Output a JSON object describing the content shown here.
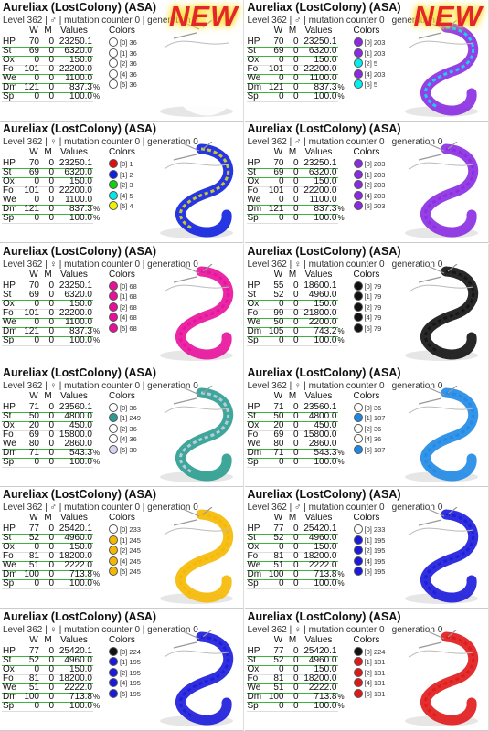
{
  "table_headers": [
    "W",
    "M",
    "Values"
  ],
  "colors_header": "Colors",
  "badges": [
    "NEW",
    "NEW"
  ],
  "cards": [
    {
      "title": "Aureliax (LostColony) (ASA)",
      "level": "Level 362 | ♂ | mutation counter 0 | generation 0",
      "stats": [
        [
          "HP",
          "70",
          "0",
          "23250.1",
          ""
        ],
        [
          "St",
          "69",
          "0",
          "6320.0",
          ""
        ],
        [
          "Ox",
          "0",
          "0",
          "150.0",
          ""
        ],
        [
          "Fo",
          "101",
          "0",
          "22200.0",
          ""
        ],
        [
          "We",
          "0",
          "0",
          "1100.0",
          ""
        ],
        [
          "Dm",
          "121",
          "0",
          "837.3",
          "%"
        ],
        [
          "Sp",
          "0",
          "0",
          "100.0",
          "%"
        ]
      ],
      "colors": [
        {
          "label": "[0] 36",
          "swatch": "#ffffff"
        },
        {
          "label": "[1] 36",
          "swatch": "#ffffff"
        },
        {
          "label": "[2] 36",
          "swatch": "#ffffff"
        },
        {
          "label": "[4] 36",
          "swatch": "#ffffff"
        },
        {
          "label": "[5] 36",
          "swatch": "#ffffff"
        }
      ]
    },
    {
      "title": "Aureliax (LostColony) (ASA)",
      "level": "Level 362 | ♂ | mutation counter 0 | generation 0",
      "stats": [
        [
          "HP",
          "70",
          "0",
          "23250.1",
          ""
        ],
        [
          "St",
          "69",
          "0",
          "6320.0",
          ""
        ],
        [
          "Ox",
          "0",
          "0",
          "150.0",
          ""
        ],
        [
          "Fo",
          "101",
          "0",
          "22200.0",
          ""
        ],
        [
          "We",
          "0",
          "0",
          "1100.0",
          ""
        ],
        [
          "Dm",
          "121",
          "0",
          "837.3",
          "%"
        ],
        [
          "Sp",
          "0",
          "0",
          "100.0",
          "%"
        ]
      ],
      "colors": [
        {
          "label": "[0] 203",
          "swatch": "#8a2be2"
        },
        {
          "label": "[1] 203",
          "swatch": "#8a2be2"
        },
        {
          "label": "[2] 5",
          "swatch": "#00f0f0"
        },
        {
          "label": "[4] 203",
          "swatch": "#8a2be2"
        },
        {
          "label": "[5] 5",
          "swatch": "#00f0f0"
        }
      ]
    },
    {
      "title": "Aureliax (LostColony) (ASA)",
      "level": "Level 362 | ♀ | mutation counter 0 | generation 0",
      "stats": [
        [
          "HP",
          "70",
          "0",
          "23250.1",
          ""
        ],
        [
          "St",
          "69",
          "0",
          "6320.0",
          ""
        ],
        [
          "Ox",
          "0",
          "0",
          "150.0",
          ""
        ],
        [
          "Fo",
          "101",
          "0",
          "22200.0",
          ""
        ],
        [
          "We",
          "0",
          "0",
          "1100.0",
          ""
        ],
        [
          "Dm",
          "121",
          "0",
          "837.3",
          "%"
        ],
        [
          "Sp",
          "0",
          "0",
          "100.0",
          "%"
        ]
      ],
      "colors": [
        {
          "label": "[0] 1",
          "swatch": "#e01010"
        },
        {
          "label": "[1] 2",
          "swatch": "#1020e0"
        },
        {
          "label": "[2] 3",
          "swatch": "#10d010"
        },
        {
          "label": "[4] 5",
          "swatch": "#00e8e8"
        },
        {
          "label": "[5] 4",
          "swatch": "#f0f000"
        }
      ]
    },
    {
      "title": "Aureliax (LostColony) (ASA)",
      "level": "Level 362 | ♂ | mutation counter 0 | generation 0",
      "stats": [
        [
          "HP",
          "70",
          "0",
          "23250.1",
          ""
        ],
        [
          "St",
          "69",
          "0",
          "6320.0",
          ""
        ],
        [
          "Ox",
          "0",
          "0",
          "150.0",
          ""
        ],
        [
          "Fo",
          "101",
          "0",
          "22200.0",
          ""
        ],
        [
          "We",
          "0",
          "0",
          "1100.0",
          ""
        ],
        [
          "Dm",
          "121",
          "0",
          "837.3",
          "%"
        ],
        [
          "Sp",
          "0",
          "0",
          "100.0",
          "%"
        ]
      ],
      "colors": [
        {
          "label": "[0] 203",
          "swatch": "#8a2be2"
        },
        {
          "label": "[1] 203",
          "swatch": "#8a2be2"
        },
        {
          "label": "[2] 203",
          "swatch": "#8a2be2"
        },
        {
          "label": "[4] 203",
          "swatch": "#8a2be2"
        },
        {
          "label": "[5] 203",
          "swatch": "#8a2be2"
        }
      ]
    },
    {
      "title": "Aureliax (LostColony) (ASA)",
      "level": "Level 362 | ♀ | mutation counter 0 | generation 0",
      "stats": [
        [
          "HP",
          "70",
          "0",
          "23250.1",
          ""
        ],
        [
          "St",
          "69",
          "0",
          "6320.0",
          ""
        ],
        [
          "Ox",
          "0",
          "0",
          "150.0",
          ""
        ],
        [
          "Fo",
          "101",
          "0",
          "22200.0",
          ""
        ],
        [
          "We",
          "0",
          "0",
          "1100.0",
          ""
        ],
        [
          "Dm",
          "121",
          "0",
          "837.3",
          "%"
        ],
        [
          "Sp",
          "0",
          "0",
          "100.0",
          "%"
        ]
      ],
      "colors": [
        {
          "label": "[0] 68",
          "swatch": "#e8109a"
        },
        {
          "label": "[1] 68",
          "swatch": "#e8109a"
        },
        {
          "label": "[2] 68",
          "swatch": "#e8109a"
        },
        {
          "label": "[4] 68",
          "swatch": "#e8109a"
        },
        {
          "label": "[5] 68",
          "swatch": "#e8109a"
        }
      ]
    },
    {
      "title": "Aureliax (LostColony) (ASA)",
      "level": "Level 362 | ♀ | mutation counter 0 | generation 0",
      "stats": [
        [
          "HP",
          "55",
          "0",
          "18600.1",
          ""
        ],
        [
          "St",
          "52",
          "0",
          "4960.0",
          ""
        ],
        [
          "Ox",
          "0",
          "0",
          "150.0",
          ""
        ],
        [
          "Fo",
          "99",
          "0",
          "21800.0",
          ""
        ],
        [
          "We",
          "50",
          "0",
          "2200.0",
          ""
        ],
        [
          "Dm",
          "105",
          "0",
          "743.2",
          "%"
        ],
        [
          "Sp",
          "0",
          "0",
          "100.0",
          "%"
        ]
      ],
      "colors": [
        {
          "label": "[0] 79",
          "swatch": "#111111"
        },
        {
          "label": "[1] 79",
          "swatch": "#111111"
        },
        {
          "label": "[2] 79",
          "swatch": "#111111"
        },
        {
          "label": "[4] 79",
          "swatch": "#111111"
        },
        {
          "label": "[5] 79",
          "swatch": "#111111"
        }
      ]
    },
    {
      "title": "Aureliax (LostColony) (ASA)",
      "level": "Level 362 | ♀ | mutation counter 0 | generation 0",
      "stats": [
        [
          "HP",
          "71",
          "0",
          "23560.1",
          ""
        ],
        [
          "St",
          "50",
          "0",
          "4800.0",
          ""
        ],
        [
          "Ox",
          "20",
          "0",
          "450.0",
          ""
        ],
        [
          "Fo",
          "69",
          "0",
          "15800.0",
          ""
        ],
        [
          "We",
          "80",
          "0",
          "2860.0",
          ""
        ],
        [
          "Dm",
          "71",
          "0",
          "543.3",
          "%"
        ],
        [
          "Sp",
          "0",
          "0",
          "100.0",
          "%"
        ]
      ],
      "colors": [
        {
          "label": "[0] 36",
          "swatch": "#ffffff"
        },
        {
          "label": "[1] 249",
          "swatch": "#2a9d8f"
        },
        {
          "label": "[2] 36",
          "swatch": "#ffffff"
        },
        {
          "label": "[4] 36",
          "swatch": "#ffffff"
        },
        {
          "label": "[5] 30",
          "swatch": "#d8d4f0"
        }
      ]
    },
    {
      "title": "Aureliax (LostColony) (ASA)",
      "level": "Level 362 | ♀ | mutation counter 0 | generation 0",
      "stats": [
        [
          "HP",
          "71",
          "0",
          "23560.1",
          ""
        ],
        [
          "St",
          "50",
          "0",
          "4800.0",
          ""
        ],
        [
          "Ox",
          "20",
          "0",
          "450.0",
          ""
        ],
        [
          "Fo",
          "69",
          "0",
          "15800.0",
          ""
        ],
        [
          "We",
          "80",
          "0",
          "2860.0",
          ""
        ],
        [
          "Dm",
          "71",
          "0",
          "543.3",
          "%"
        ],
        [
          "Sp",
          "0",
          "0",
          "100.0",
          "%"
        ]
      ],
      "colors": [
        {
          "label": "[0] 36",
          "swatch": "#ffffff"
        },
        {
          "label": "[1] 187",
          "swatch": "#1e88e5"
        },
        {
          "label": "[2] 36",
          "swatch": "#ffffff"
        },
        {
          "label": "[4] 36",
          "swatch": "#ffffff"
        },
        {
          "label": "[5] 187",
          "swatch": "#1e88e5"
        }
      ]
    },
    {
      "title": "Aureliax (LostColony) (ASA)",
      "level": "Level 362 | ♂ | mutation counter 0 | generation 0",
      "stats": [
        [
          "HP",
          "77",
          "0",
          "25420.1",
          ""
        ],
        [
          "St",
          "52",
          "0",
          "4960.0",
          ""
        ],
        [
          "Ox",
          "0",
          "0",
          "150.0",
          ""
        ],
        [
          "Fo",
          "81",
          "0",
          "18200.0",
          ""
        ],
        [
          "We",
          "51",
          "0",
          "2222.0",
          ""
        ],
        [
          "Dm",
          "100",
          "0",
          "713.8",
          "%"
        ],
        [
          "Sp",
          "0",
          "0",
          "100.0",
          "%"
        ]
      ],
      "colors": [
        {
          "label": "[0] 233",
          "swatch": "#ffffff"
        },
        {
          "label": "[1] 245",
          "swatch": "#f5b800"
        },
        {
          "label": "[2] 245",
          "swatch": "#f5b800"
        },
        {
          "label": "[4] 245",
          "swatch": "#f5b800"
        },
        {
          "label": "[5] 245",
          "swatch": "#f5b800"
        }
      ]
    },
    {
      "title": "Aureliax (LostColony) (ASA)",
      "level": "Level 362 | ♂ | mutation counter 0 | generation 0",
      "stats": [
        [
          "HP",
          "77",
          "0",
          "25420.1",
          ""
        ],
        [
          "St",
          "52",
          "0",
          "4960.0",
          ""
        ],
        [
          "Ox",
          "0",
          "0",
          "150.0",
          ""
        ],
        [
          "Fo",
          "81",
          "0",
          "18200.0",
          ""
        ],
        [
          "We",
          "51",
          "0",
          "2222.0",
          ""
        ],
        [
          "Dm",
          "100",
          "0",
          "713.8",
          "%"
        ],
        [
          "Sp",
          "0",
          "0",
          "100.0",
          "%"
        ]
      ],
      "colors": [
        {
          "label": "[0] 233",
          "swatch": "#ffffff"
        },
        {
          "label": "[1] 195",
          "swatch": "#1a1adc"
        },
        {
          "label": "[2] 195",
          "swatch": "#1a1adc"
        },
        {
          "label": "[4] 195",
          "swatch": "#1a1adc"
        },
        {
          "label": "[5] 195",
          "swatch": "#1a1adc"
        }
      ]
    },
    {
      "title": "Aureliax (LostColony) (ASA)",
      "level": "Level 362 | ♀ | mutation counter 0 | generation 0",
      "stats": [
        [
          "HP",
          "77",
          "0",
          "25420.1",
          ""
        ],
        [
          "St",
          "52",
          "0",
          "4960.0",
          ""
        ],
        [
          "Ox",
          "0",
          "0",
          "150.0",
          ""
        ],
        [
          "Fo",
          "81",
          "0",
          "18200.0",
          ""
        ],
        [
          "We",
          "51",
          "0",
          "2222.0",
          ""
        ],
        [
          "Dm",
          "100",
          "0",
          "713.8",
          "%"
        ],
        [
          "Sp",
          "0",
          "0",
          "100.0",
          "%"
        ]
      ],
      "colors": [
        {
          "label": "[0] 224",
          "swatch": "#111111"
        },
        {
          "label": "[1] 195",
          "swatch": "#1a1adc"
        },
        {
          "label": "[2] 195",
          "swatch": "#1a1adc"
        },
        {
          "label": "[4] 195",
          "swatch": "#1a1adc"
        },
        {
          "label": "[5] 195",
          "swatch": "#1a1adc"
        }
      ]
    },
    {
      "title": "Aureliax (LostColony) (ASA)",
      "level": "Level 362 | ♀ | mutation counter 0 | generation 0",
      "stats": [
        [
          "HP",
          "77",
          "0",
          "25420.1",
          ""
        ],
        [
          "St",
          "52",
          "0",
          "4960.0",
          ""
        ],
        [
          "Ox",
          "0",
          "0",
          "150.0",
          ""
        ],
        [
          "Fo",
          "81",
          "0",
          "18200.0",
          ""
        ],
        [
          "We",
          "51",
          "0",
          "2222.0",
          ""
        ],
        [
          "Dm",
          "100",
          "0",
          "713.8",
          "%"
        ],
        [
          "Sp",
          "0",
          "0",
          "100.0",
          "%"
        ]
      ],
      "colors": [
        {
          "label": "[0] 224",
          "swatch": "#111111"
        },
        {
          "label": "[1] 131",
          "swatch": "#e01818"
        },
        {
          "label": "[2] 131",
          "swatch": "#e01818"
        },
        {
          "label": "[4] 131",
          "swatch": "#e01818"
        },
        {
          "label": "[5] 131",
          "swatch": "#e01818"
        }
      ]
    }
  ]
}
